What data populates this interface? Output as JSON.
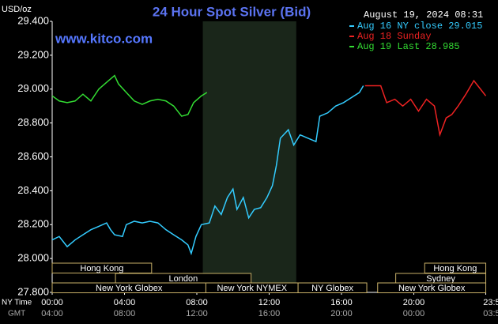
{
  "chart_data": {
    "type": "line",
    "title": "24 Hour Spot Silver (Bid)",
    "timestamp": "August 19, 2024 08:31",
    "ylabel": "USD/oz",
    "watermark": "www.kitco.com",
    "xlabel": "NY Time",
    "x2label": "GMT",
    "background": "#000000",
    "xlim": [
      0,
      24
    ],
    "xticks": [
      {
        "value": 0,
        "label": "00:00"
      },
      {
        "value": 4,
        "label": "04:00"
      },
      {
        "value": 8,
        "label": "08:00"
      },
      {
        "value": 12,
        "label": "12:00"
      },
      {
        "value": 16,
        "label": "16:00"
      },
      {
        "value": 20,
        "label": "20:00"
      },
      {
        "value": 23.98,
        "label": "23:59"
      }
    ],
    "x2ticks": [
      "04:00",
      "08:00",
      "12:00",
      "16:00",
      "20:00",
      "00:00",
      "03:59"
    ],
    "ylim": [
      27.8,
      29.4
    ],
    "yticks": [
      {
        "value": 27.8,
        "label": "27.800"
      },
      {
        "value": 28,
        "label": "28.000"
      },
      {
        "value": 28.2,
        "label": "28.200"
      },
      {
        "value": 28.4,
        "label": "28.400"
      },
      {
        "value": 28.6,
        "label": "28.600"
      },
      {
        "value": 28.8,
        "label": "28.800"
      },
      {
        "value": 29,
        "label": "29.000"
      },
      {
        "value": 29.2,
        "label": "29.200"
      },
      {
        "value": 29.4,
        "label": "29.400"
      }
    ],
    "shade": [
      8.33,
      13.5
    ],
    "session_rows": [
      [
        {
          "label": "Hong Kong",
          "start": 0,
          "end": 5.5
        },
        {
          "label": "Hong Kong",
          "start": 20.6,
          "end": 23.98
        }
      ],
      [
        {
          "label": "London",
          "start": 3.5,
          "end": 11
        },
        {
          "label": "Sydney",
          "start": 19,
          "end": 23.98
        }
      ],
      [
        {
          "label": "New York Globex",
          "start": 0,
          "end": 8.5
        },
        {
          "label": "New York NYMEX",
          "start": 8.5,
          "end": 13.6
        },
        {
          "label": "NY Globex",
          "start": 13.6,
          "end": 17.4
        },
        {
          "label": "New York Globex",
          "start": 18,
          "end": 23.98
        }
      ]
    ],
    "series": [
      {
        "name": "Aug 16 NY close 29.015",
        "color": "#33ccff",
        "x": [
          0,
          0.39,
          0.83,
          1.27,
          1.7,
          2.14,
          2.58,
          3.01,
          3.23,
          3.45,
          3.89,
          4.1,
          4.54,
          4.98,
          5.41,
          5.85,
          6.29,
          6.72,
          7.16,
          7.51,
          7.69,
          7.95,
          8.25,
          8.69,
          9.0,
          9.35,
          9.69,
          10.0,
          10.22,
          10.57,
          10.87,
          11.18,
          11.53,
          11.88,
          12.18,
          12.4,
          12.62,
          13.06,
          13.36,
          13.71,
          14.15,
          14.59,
          14.8,
          15.24,
          15.68,
          16.11,
          16.55,
          16.99,
          17.21
        ],
        "values": [
          28.11,
          28.13,
          28.07,
          28.11,
          28.14,
          28.17,
          28.19,
          28.21,
          28.17,
          28.14,
          28.13,
          28.2,
          28.22,
          28.21,
          28.22,
          28.21,
          28.17,
          28.14,
          28.11,
          28.08,
          28.03,
          28.13,
          28.2,
          28.21,
          28.31,
          28.26,
          28.36,
          28.41,
          28.29,
          28.36,
          28.24,
          28.29,
          28.3,
          28.36,
          28.43,
          28.55,
          28.71,
          28.76,
          28.67,
          28.73,
          28.71,
          28.69,
          28.84,
          28.86,
          28.9,
          28.92,
          28.95,
          28.98,
          29.02
        ]
      },
      {
        "name": "Aug 18 Sunday",
        "color": "#ee2222",
        "x": [
          17.3,
          18.17,
          18.5,
          18.95,
          19.39,
          19.83,
          20.26,
          20.7,
          21.14,
          21.44,
          21.79,
          22.1,
          22.45,
          22.88,
          23.32,
          23.76,
          23.98
        ],
        "values": [
          29.02,
          29.02,
          28.92,
          28.94,
          28.9,
          28.94,
          28.87,
          28.94,
          28.9,
          28.73,
          28.83,
          28.85,
          28.9,
          28.97,
          29.05,
          28.99,
          28.96
        ]
      },
      {
        "name": "Aug 19 Last 28.985",
        "color": "#33dd33",
        "x": [
          0,
          0.39,
          0.83,
          1.27,
          1.7,
          2.14,
          2.58,
          3.01,
          3.45,
          3.67,
          4.1,
          4.54,
          4.98,
          5.41,
          5.85,
          6.29,
          6.72,
          7.16,
          7.51,
          7.82,
          8.25,
          8.56
        ],
        "values": [
          28.96,
          28.93,
          28.92,
          28.93,
          28.97,
          28.93,
          29.0,
          29.04,
          29.08,
          29.03,
          28.98,
          28.93,
          28.91,
          28.93,
          28.94,
          28.93,
          28.9,
          28.84,
          28.85,
          28.92,
          28.96,
          28.98
        ]
      }
    ]
  }
}
